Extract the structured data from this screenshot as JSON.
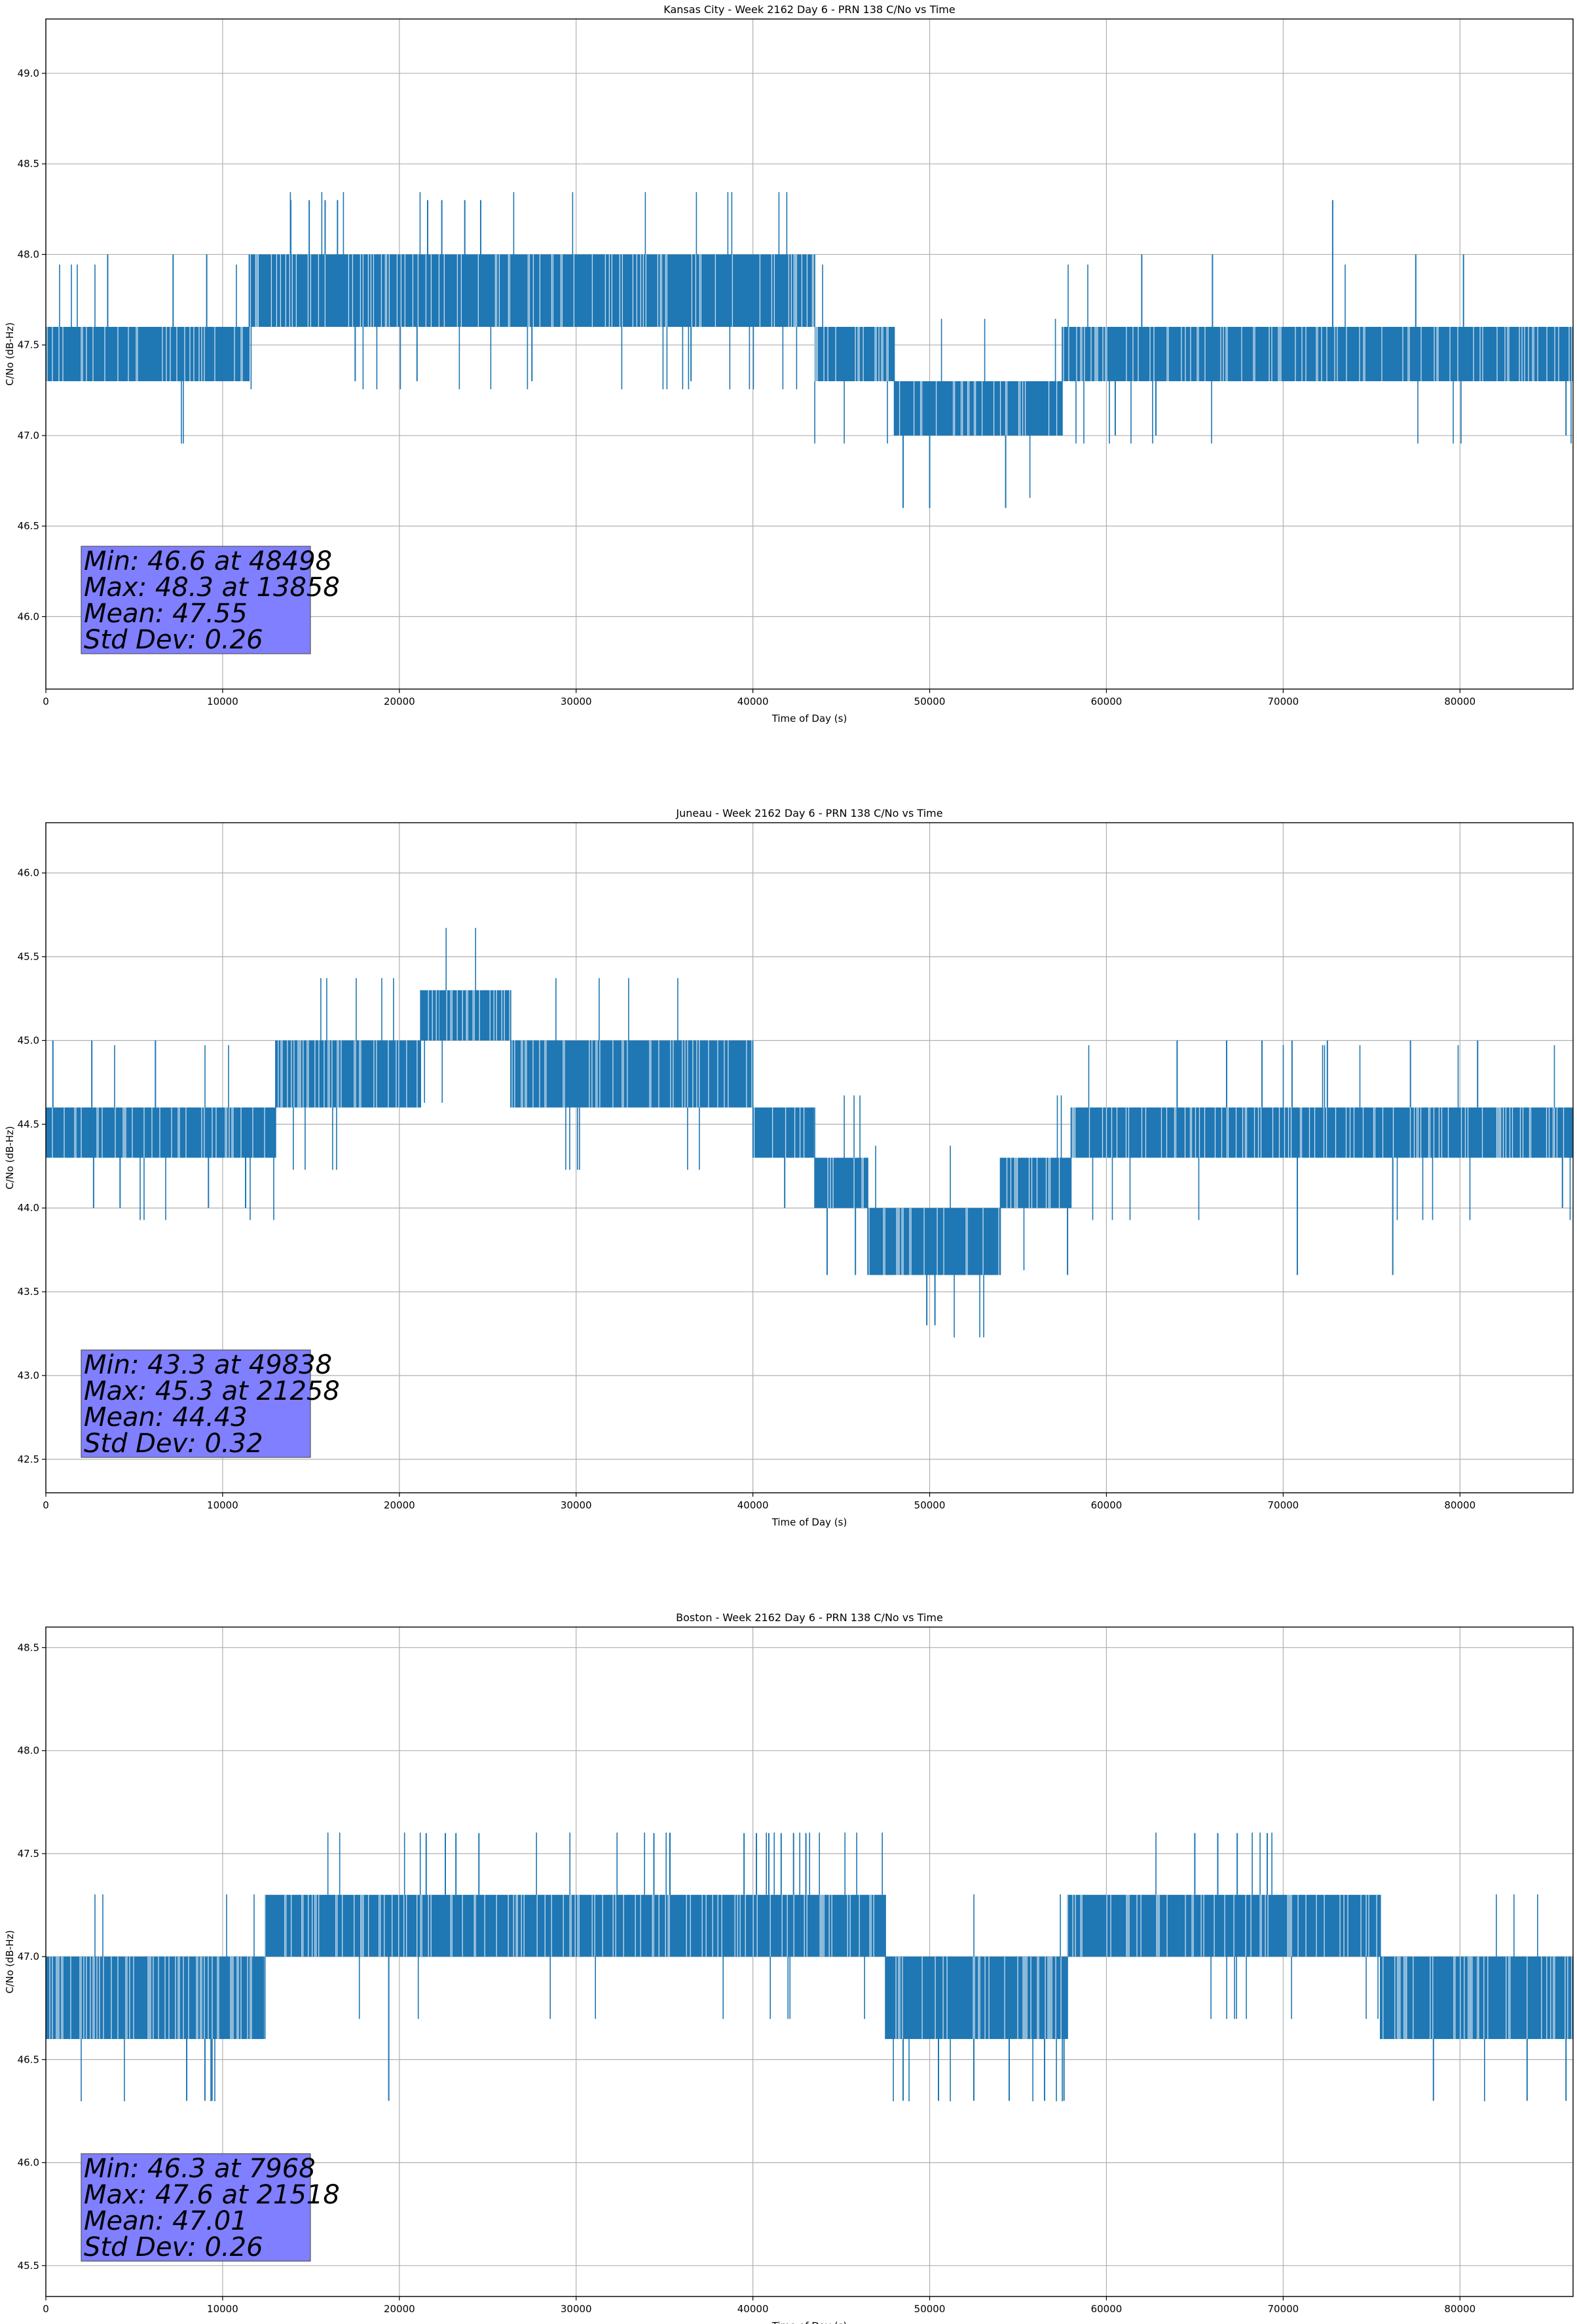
{
  "chart_data": [
    {
      "type": "line",
      "title": "Kansas City - Week 2162 Day 6 - PRN 138 C/No vs Time",
      "xlabel": "Time of Day (s)",
      "ylabel": "C/No (dB-Hz)",
      "xlim": [
        0,
        86400
      ],
      "ylim": [
        45.6,
        49.3
      ],
      "x_ticks": [
        0,
        10000,
        20000,
        30000,
        40000,
        50000,
        60000,
        70000,
        80000
      ],
      "x_tick_labels": [
        "0",
        "10000",
        "20000",
        "30000",
        "40000",
        "50000",
        "60000",
        "70000",
        "80000"
      ],
      "y_ticks": [
        46.0,
        46.5,
        47.0,
        47.5,
        48.0,
        48.5,
        49.0
      ],
      "y_tick_labels": [
        "46.0",
        "46.5",
        "47.0",
        "47.5",
        "48.0",
        "48.5",
        "49.0"
      ],
      "grid": true,
      "color": "#1f77b4",
      "band_segments": [
        {
          "x": [
            0,
            11500
          ],
          "low": 47.3,
          "high": 47.6
        },
        {
          "x": [
            11500,
            25800
          ],
          "low": 47.6,
          "high": 48.0
        },
        {
          "x": [
            25800,
            43500
          ],
          "low": 47.6,
          "high": 48.0
        },
        {
          "x": [
            43500,
            48000
          ],
          "low": 47.3,
          "high": 47.6
        },
        {
          "x": [
            48000,
            57500
          ],
          "low": 47.0,
          "high": 47.3
        },
        {
          "x": [
            57500,
            86400
          ],
          "low": 47.3,
          "high": 47.6
        }
      ],
      "spikes": [
        {
          "x": 13858,
          "y": 48.3
        },
        {
          "x": 14900,
          "y": 48.3
        },
        {
          "x": 15800,
          "y": 48.3
        },
        {
          "x": 16500,
          "y": 48.3
        },
        {
          "x": 21600,
          "y": 48.3
        },
        {
          "x": 22400,
          "y": 48.3
        },
        {
          "x": 23700,
          "y": 48.3
        },
        {
          "x": 24600,
          "y": 48.3
        },
        {
          "x": 72800,
          "y": 48.3
        },
        {
          "x": 48498,
          "y": 46.6
        },
        {
          "x": 50000,
          "y": 46.6
        },
        {
          "x": 54300,
          "y": 46.6
        },
        {
          "x": 3500,
          "y": 48.0
        },
        {
          "x": 7200,
          "y": 48.0
        },
        {
          "x": 9100,
          "y": 48.0
        },
        {
          "x": 62000,
          "y": 48.0
        },
        {
          "x": 66000,
          "y": 48.0
        },
        {
          "x": 77500,
          "y": 48.0
        },
        {
          "x": 80200,
          "y": 48.0
        },
        {
          "x": 48600,
          "y": 47.0
        },
        {
          "x": 60500,
          "y": 47.0
        },
        {
          "x": 62800,
          "y": 47.0
        },
        {
          "x": 86000,
          "y": 47.0
        },
        {
          "x": 17500,
          "y": 47.3
        },
        {
          "x": 21000,
          "y": 47.3
        },
        {
          "x": 27500,
          "y": 47.3
        },
        {
          "x": 36500,
          "y": 47.3
        }
      ],
      "stats": {
        "min": "Min: 46.6 at 48498",
        "max": "Max: 48.3 at 13858",
        "mean": "Mean: 47.55",
        "std": "Std Dev: 0.26"
      }
    },
    {
      "type": "line",
      "title": "Juneau - Week 2162 Day 6 - PRN 138 C/No vs Time",
      "xlabel": "Time of Day (s)",
      "ylabel": "C/No (dB-Hz)",
      "xlim": [
        0,
        86400
      ],
      "ylim": [
        42.3,
        46.3
      ],
      "x_ticks": [
        0,
        10000,
        20000,
        30000,
        40000,
        50000,
        60000,
        70000,
        80000
      ],
      "x_tick_labels": [
        "0",
        "10000",
        "20000",
        "30000",
        "40000",
        "50000",
        "60000",
        "70000",
        "80000"
      ],
      "y_ticks": [
        42.5,
        43.0,
        43.5,
        44.0,
        44.5,
        45.0,
        45.5,
        46.0
      ],
      "y_tick_labels": [
        "42.5",
        "43.0",
        "43.5",
        "44.0",
        "44.5",
        "45.0",
        "45.5",
        "46.0"
      ],
      "grid": true,
      "color": "#1f77b4",
      "band_segments": [
        {
          "x": [
            0,
            13000
          ],
          "low": 44.3,
          "high": 44.6
        },
        {
          "x": [
            13000,
            21200
          ],
          "low": 44.6,
          "high": 45.0
        },
        {
          "x": [
            21200,
            26300
          ],
          "low": 45.0,
          "high": 45.3
        },
        {
          "x": [
            26300,
            40000
          ],
          "low": 44.6,
          "high": 45.0
        },
        {
          "x": [
            40000,
            43500
          ],
          "low": 44.3,
          "high": 44.6
        },
        {
          "x": [
            43500,
            46500
          ],
          "low": 44.0,
          "high": 44.3
        },
        {
          "x": [
            46500,
            54000
          ],
          "low": 43.6,
          "high": 44.0
        },
        {
          "x": [
            54000,
            58000
          ],
          "low": 44.0,
          "high": 44.3
        },
        {
          "x": [
            58000,
            86400
          ],
          "low": 44.3,
          "high": 44.6
        }
      ],
      "spikes": [
        {
          "x": 49838,
          "y": 43.3
        },
        {
          "x": 50300,
          "y": 43.3
        },
        {
          "x": 21258,
          "y": 45.3
        },
        {
          "x": 22200,
          "y": 45.3
        },
        {
          "x": 400,
          "y": 45.0
        },
        {
          "x": 2600,
          "y": 45.0
        },
        {
          "x": 6200,
          "y": 45.0
        },
        {
          "x": 64000,
          "y": 45.0
        },
        {
          "x": 66800,
          "y": 45.0
        },
        {
          "x": 68800,
          "y": 45.0
        },
        {
          "x": 70500,
          "y": 45.0
        },
        {
          "x": 72500,
          "y": 45.0
        },
        {
          "x": 77200,
          "y": 45.0
        },
        {
          "x": 81000,
          "y": 45.0
        },
        {
          "x": 2700,
          "y": 44.0
        },
        {
          "x": 4200,
          "y": 44.0
        },
        {
          "x": 9200,
          "y": 44.0
        },
        {
          "x": 11300,
          "y": 44.0
        },
        {
          "x": 41800,
          "y": 44.0
        },
        {
          "x": 44200,
          "y": 43.6
        },
        {
          "x": 45800,
          "y": 43.6
        },
        {
          "x": 57800,
          "y": 43.6
        },
        {
          "x": 70800,
          "y": 43.6
        },
        {
          "x": 76200,
          "y": 43.6
        },
        {
          "x": 85800,
          "y": 44.0
        }
      ],
      "stats": {
        "min": "Min: 43.3 at 49838",
        "max": "Max: 45.3 at 21258",
        "mean": "Mean: 44.43",
        "std": "Std Dev: 0.32"
      }
    },
    {
      "type": "line",
      "title": "Boston - Week 2162 Day 6 - PRN 138 C/No vs Time",
      "xlabel": "Time of Day (s)",
      "ylabel": "C/No (dB-Hz)",
      "xlim": [
        0,
        86400
      ],
      "ylim": [
        45.35,
        48.6
      ],
      "x_ticks": [
        0,
        10000,
        20000,
        30000,
        40000,
        50000,
        60000,
        70000,
        80000
      ],
      "x_tick_labels": [
        "0",
        "10000",
        "20000",
        "30000",
        "40000",
        "50000",
        "60000",
        "70000",
        "80000"
      ],
      "y_ticks": [
        45.5,
        46.0,
        46.5,
        47.0,
        47.5,
        48.0,
        48.5
      ],
      "y_tick_labels": [
        "45.5",
        "46.0",
        "46.5",
        "47.0",
        "47.5",
        "48.0",
        "48.5"
      ],
      "grid": true,
      "color": "#1f77b4",
      "band_segments": [
        {
          "x": [
            0,
            12400
          ],
          "low": 46.6,
          "high": 47.0
        },
        {
          "x": [
            12400,
            21200
          ],
          "low": 47.0,
          "high": 47.3
        },
        {
          "x": [
            21200,
            47500
          ],
          "low": 47.0,
          "high": 47.3
        },
        {
          "x": [
            47500,
            57800
          ],
          "low": 46.6,
          "high": 47.0
        },
        {
          "x": [
            57800,
            75500
          ],
          "low": 47.0,
          "high": 47.3
        },
        {
          "x": [
            75500,
            86400
          ],
          "low": 46.6,
          "high": 47.0
        }
      ],
      "spikes": [
        {
          "x": 7968,
          "y": 46.3
        },
        {
          "x": 9000,
          "y": 46.3
        },
        {
          "x": 9400,
          "y": 46.3
        },
        {
          "x": 19400,
          "y": 46.3
        },
        {
          "x": 21518,
          "y": 47.6
        },
        {
          "x": 22600,
          "y": 47.6
        },
        {
          "x": 23200,
          "y": 47.6
        },
        {
          "x": 24500,
          "y": 47.6
        },
        {
          "x": 34400,
          "y": 47.6
        },
        {
          "x": 35300,
          "y": 47.6
        },
        {
          "x": 39500,
          "y": 47.6
        },
        {
          "x": 40200,
          "y": 47.6
        },
        {
          "x": 40900,
          "y": 47.6
        },
        {
          "x": 41600,
          "y": 47.6
        },
        {
          "x": 42300,
          "y": 47.6
        },
        {
          "x": 43000,
          "y": 47.6
        },
        {
          "x": 65000,
          "y": 47.6
        },
        {
          "x": 66300,
          "y": 47.6
        },
        {
          "x": 67400,
          "y": 47.6
        },
        {
          "x": 69100,
          "y": 47.6
        },
        {
          "x": 48500,
          "y": 46.3
        },
        {
          "x": 50500,
          "y": 46.3
        },
        {
          "x": 52500,
          "y": 46.3
        },
        {
          "x": 54500,
          "y": 46.3
        },
        {
          "x": 56500,
          "y": 46.3
        },
        {
          "x": 57600,
          "y": 46.3
        },
        {
          "x": 78500,
          "y": 46.3
        },
        {
          "x": 83800,
          "y": 46.3
        },
        {
          "x": 86000,
          "y": 46.3
        }
      ],
      "stats": {
        "min": "Min: 46.3 at 7968",
        "max": "Max: 47.6 at 21518",
        "mean": "Mean: 47.01",
        "std": "Std Dev: 0.26"
      }
    }
  ],
  "colors": {
    "series": "#1f77b4",
    "grid": "#b0b0b0",
    "stats_box_fill": "#7f7fff",
    "stats_box_edge": "#555555"
  }
}
